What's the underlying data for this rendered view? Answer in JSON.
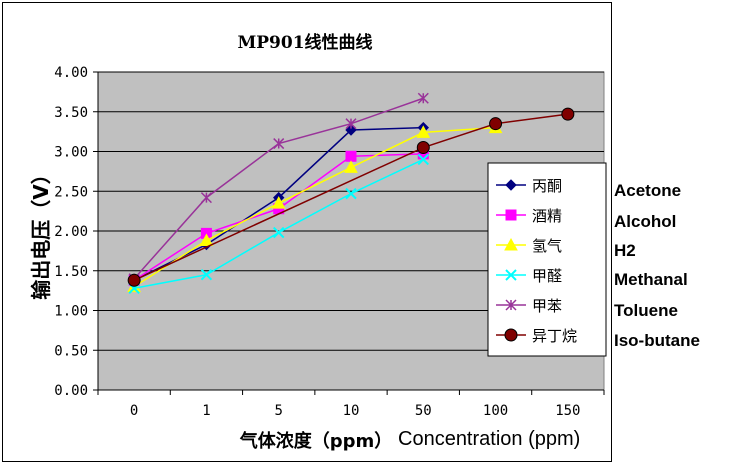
{
  "chart_data": {
    "type": "line",
    "title": "MP901线性曲线",
    "xlabel": "气体浓度（ppm）",
    "xlabel_en": "Concentration (ppm)",
    "ylabel": "输出电压（V）",
    "categories": [
      "0",
      "1",
      "5",
      "10",
      "50",
      "100",
      "150"
    ],
    "ylim": [
      0,
      4
    ],
    "yticks": [
      "0.00",
      "0.50",
      "1.00",
      "1.50",
      "2.00",
      "2.50",
      "3.00",
      "3.50",
      "4.00"
    ],
    "grid": true,
    "legend_position": "right",
    "series": [
      {
        "name": "丙酮",
        "name_en": "Acetone",
        "color": "#000080",
        "marker": "diamond",
        "values": [
          1.38,
          1.83,
          2.42,
          3.27,
          3.3,
          null,
          null
        ]
      },
      {
        "name": "酒精",
        "name_en": "Alcohol",
        "color": "#ff00ff",
        "marker": "square",
        "values": [
          1.38,
          1.97,
          2.28,
          2.94,
          2.97,
          null,
          null
        ]
      },
      {
        "name": "氢气",
        "name_en": "H2",
        "color": "#ffff00",
        "marker": "triangle",
        "values": [
          1.3,
          1.88,
          2.35,
          2.8,
          3.24,
          3.3,
          null
        ]
      },
      {
        "name": "甲醛",
        "name_en": "Methanal",
        "color": "#00ffff",
        "marker": "x",
        "values": [
          1.28,
          1.45,
          1.98,
          2.47,
          2.9,
          null,
          null
        ]
      },
      {
        "name": "甲苯",
        "name_en": "Toluene",
        "color": "#993399",
        "marker": "star",
        "values": [
          1.4,
          2.42,
          3.1,
          3.35,
          3.67,
          null,
          null
        ]
      },
      {
        "name": "异丁烷",
        "name_en": "Iso-butane",
        "color": "#800000",
        "marker": "circle",
        "values": [
          1.38,
          null,
          null,
          null,
          3.05,
          3.35,
          3.47
        ]
      }
    ]
  }
}
